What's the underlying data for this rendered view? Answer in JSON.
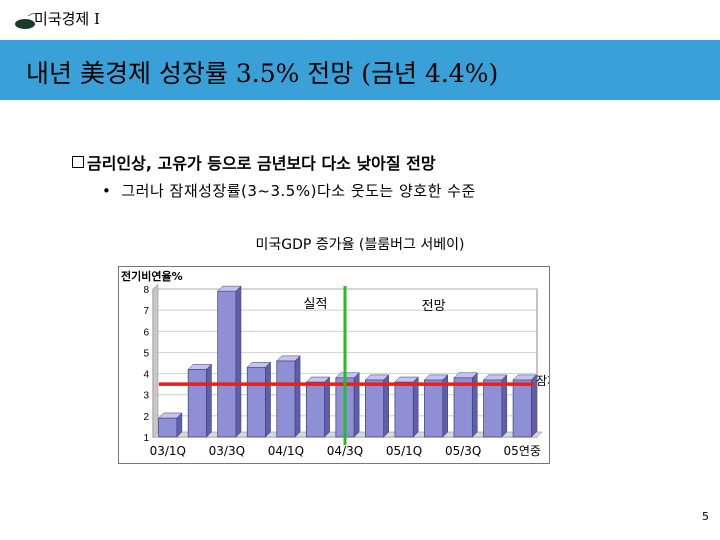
{
  "header": {
    "label": "미국경제 I"
  },
  "title": {
    "text": "내년 美경제 성장률 3.5% 전망 (금년 4.4%)"
  },
  "bullets": {
    "main": "금리인상, 고유가 등으로 금년보다 다소 낮아질 전망",
    "sub": "그러나 잠재성장률(3~3.5%)다소 웃도는 양호한 수준",
    "sub_marker": "•"
  },
  "chart_caption": "미국GDP 증가율 (블룸버그 서베이)",
  "chart_data": {
    "type": "bar",
    "title": "",
    "ylabel": "전기비연율%",
    "ylim": [
      1,
      8
    ],
    "yticks": [
      "1",
      "2",
      "3",
      "4",
      "5",
      "6",
      "7",
      "8"
    ],
    "categories": [
      "03/1Q",
      "",
      "03/3Q",
      "",
      "04/1Q",
      "",
      "04/3Q",
      "",
      "05/1Q",
      "",
      "05/3Q",
      "",
      "05연중"
    ],
    "values": [
      1.9,
      4.2,
      7.9,
      4.3,
      4.6,
      3.6,
      3.8,
      3.7,
      3.6,
      3.7,
      3.8,
      3.7,
      3.7
    ],
    "bar_color": "#8f8fd6",
    "potential_growth": {
      "label": "잠재성장율",
      "value": 3.5,
      "color": "#e8201c"
    },
    "divider": {
      "after_index": 6.5,
      "color": "#22c022"
    },
    "annotations": [
      {
        "text": "실적",
        "at": 5,
        "y": 7.1
      },
      {
        "text": "전망",
        "at": 9,
        "y": 7.0
      }
    ]
  },
  "page_number": "5"
}
